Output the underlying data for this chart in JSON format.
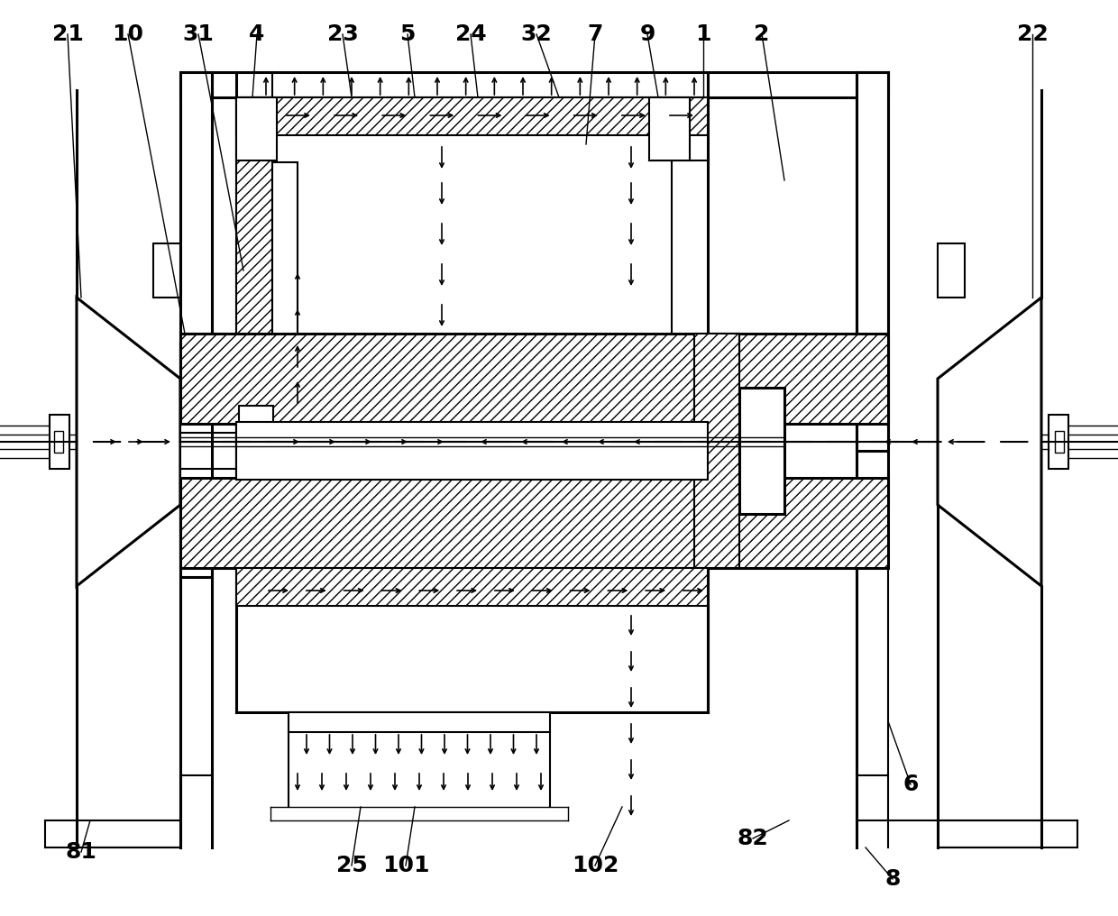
{
  "bg_color": "#ffffff",
  "line_color": "#000000",
  "fig_width": 12.4,
  "fig_height": 10.16,
  "dpi": 100,
  "lw_thin": 1.0,
  "lw_med": 1.5,
  "lw_thick": 2.2
}
